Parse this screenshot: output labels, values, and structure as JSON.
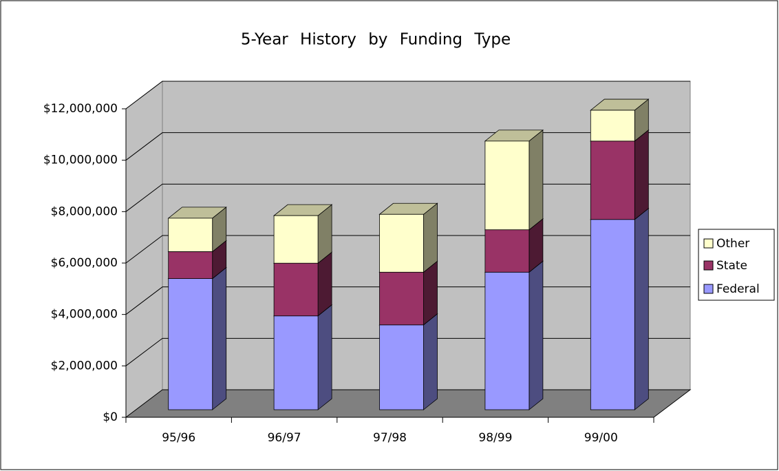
{
  "chart_data": {
    "type": "bar3d_stacked",
    "title": "5-Year History by Funding Type",
    "categories": [
      "95/96",
      "96/97",
      "97/98",
      "98/99",
      "99/00"
    ],
    "series": [
      {
        "name": "Federal",
        "color": "#9999ff",
        "values": [
          5100000,
          3650000,
          3300000,
          5350000,
          7400000
        ]
      },
      {
        "name": "State",
        "color": "#993366",
        "values": [
          1050000,
          2050000,
          2050000,
          1650000,
          3050000
        ]
      },
      {
        "name": "Other",
        "color": "#ffffcc",
        "values": [
          1300000,
          1850000,
          2250000,
          3450000,
          1200000
        ]
      }
    ],
    "ylim": [
      0,
      12000000
    ],
    "yticks": [
      {
        "value": 0,
        "label": "$0"
      },
      {
        "value": 2000000,
        "label": "$2,000,000"
      },
      {
        "value": 4000000,
        "label": "$4,000,000"
      },
      {
        "value": 6000000,
        "label": "$6,000,000"
      },
      {
        "value": 8000000,
        "label": "$8,000,000"
      },
      {
        "value": 10000000,
        "label": "$10,000,000"
      },
      {
        "value": 12000000,
        "label": "$12,000,000"
      }
    ],
    "grid": true,
    "legend": "right"
  }
}
